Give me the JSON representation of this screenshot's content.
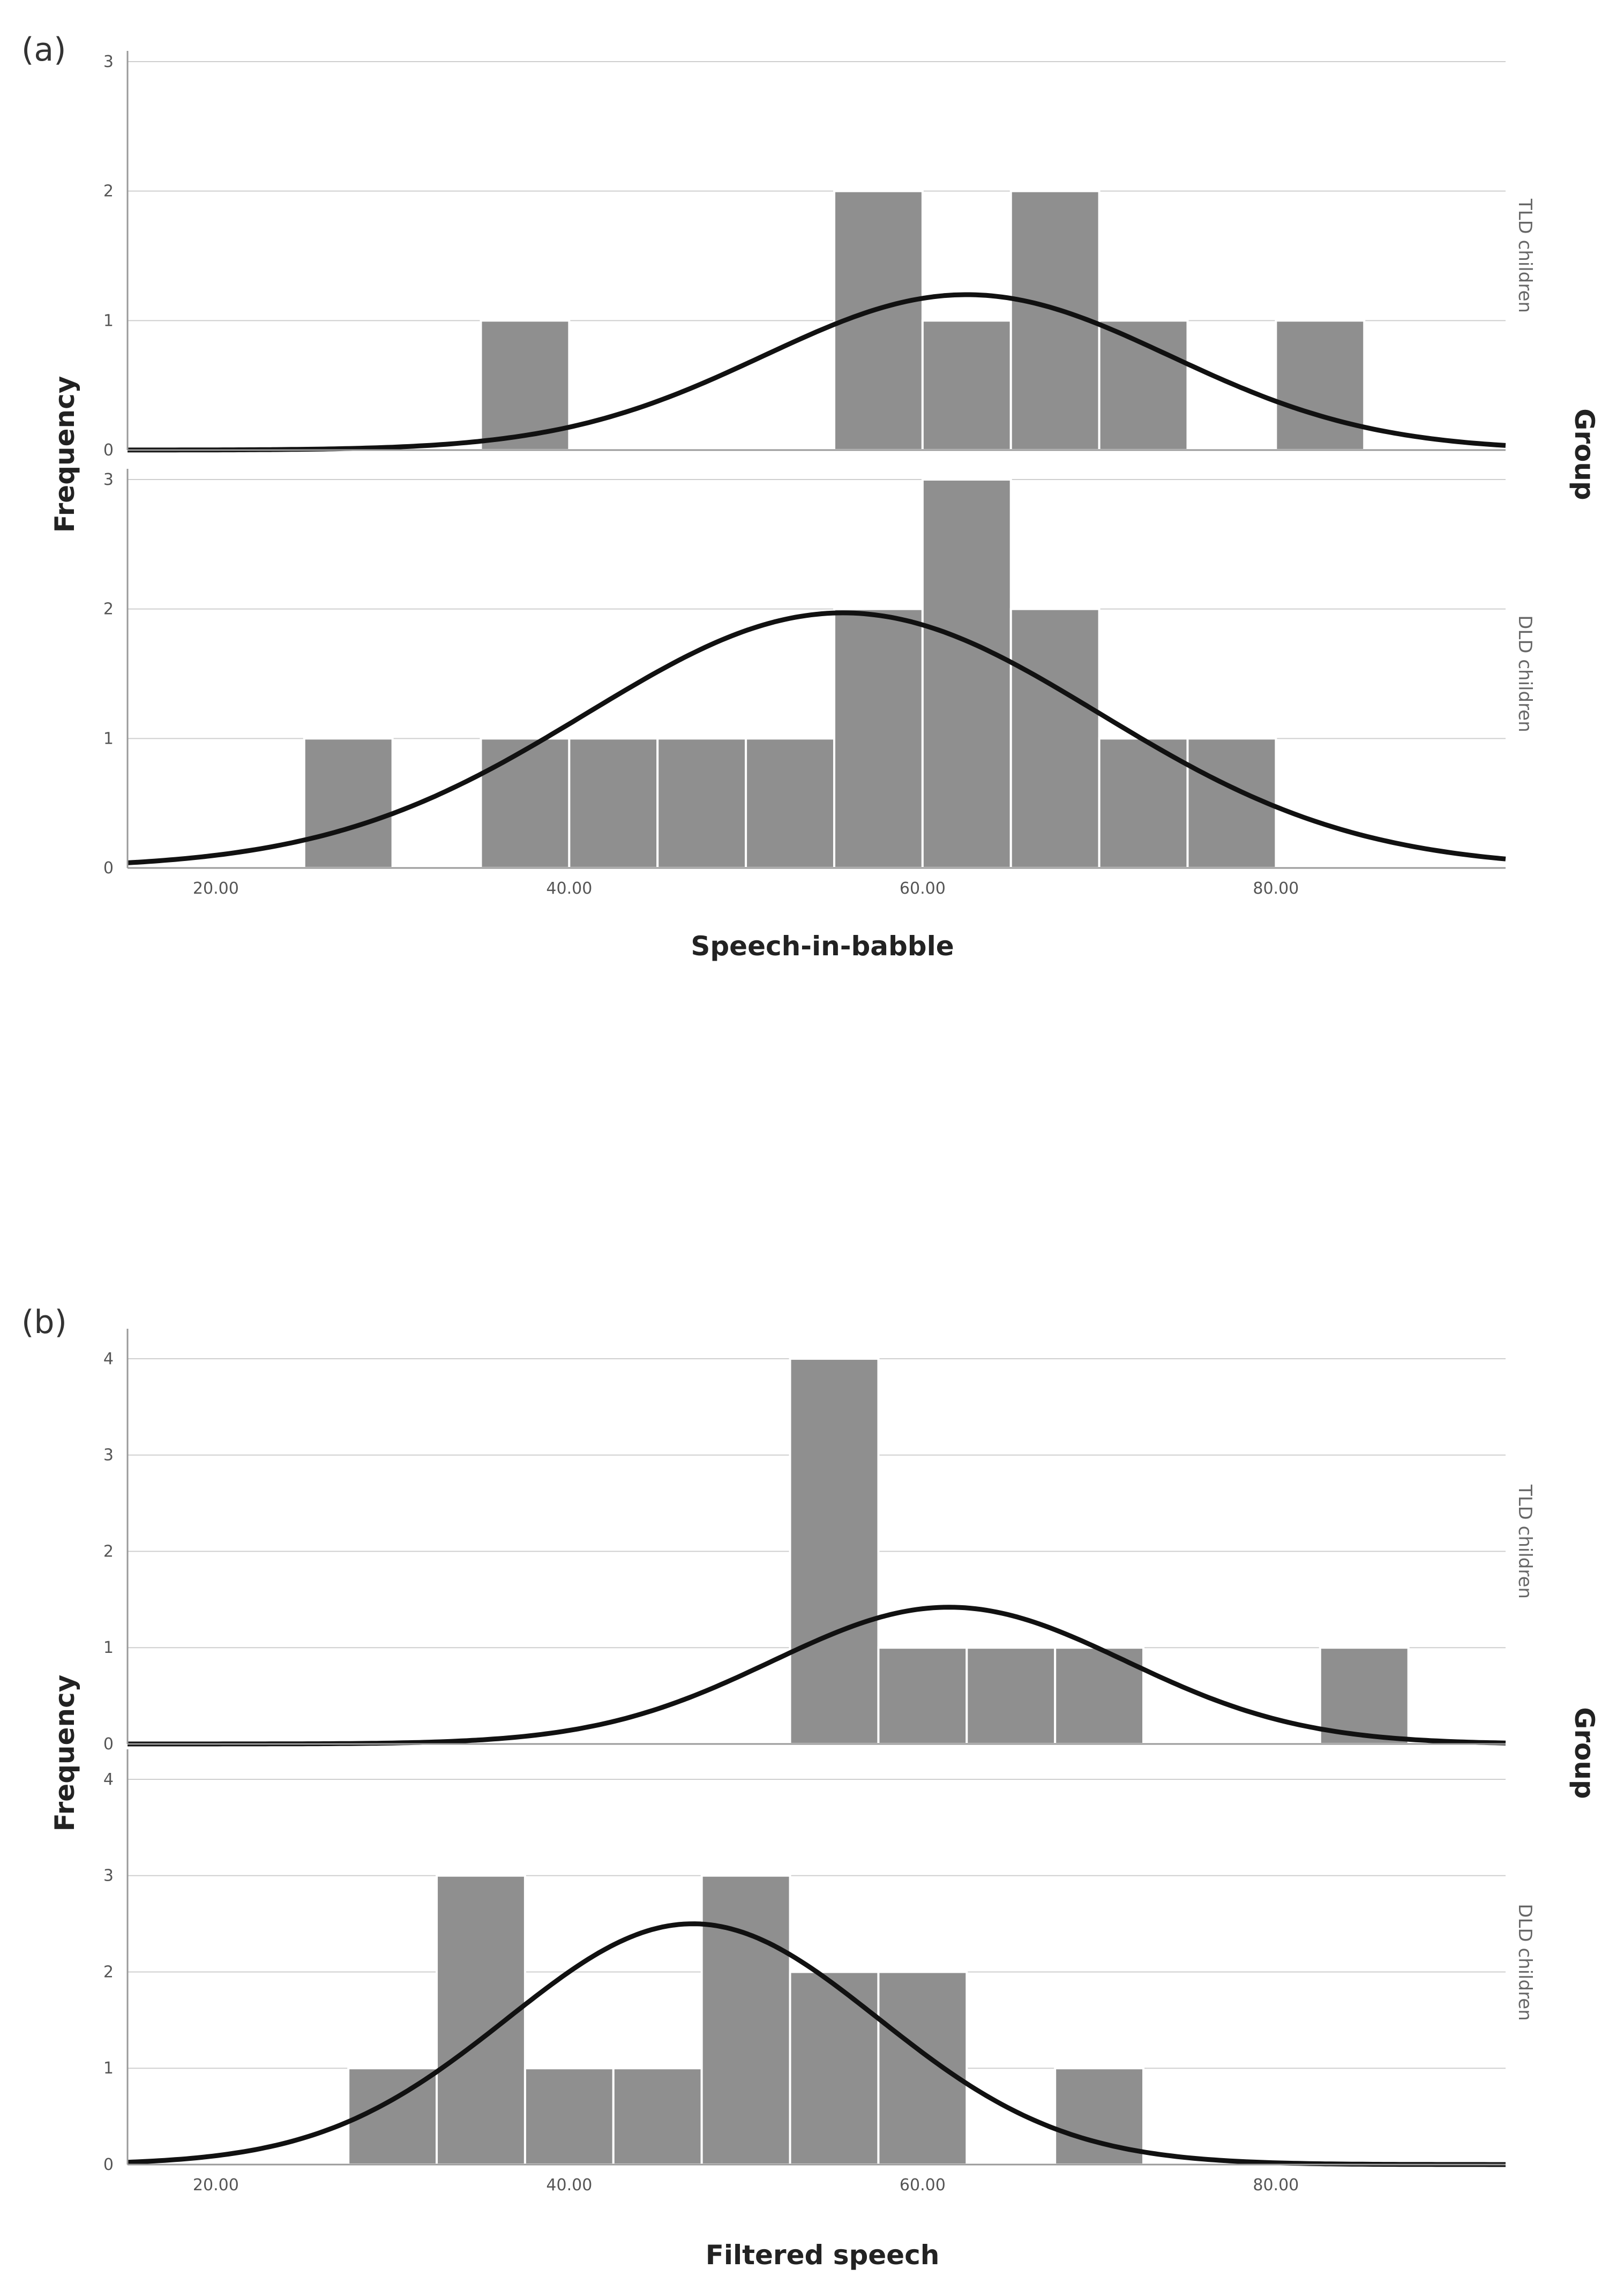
{
  "chart_data": [
    {
      "panel_label": "(a)",
      "type": "bar",
      "kind": "histogram with normal curve",
      "xlabel": "Speech-in-babble",
      "ylabel": "Frequency",
      "group_label": "Group",
      "xlim": [
        15,
        93
      ],
      "xticks": [
        20,
        40,
        60,
        80
      ],
      "xtick_labels": [
        "20.00",
        "40.00",
        "60.00",
        "80.00"
      ],
      "bin_width": 5,
      "panels": [
        {
          "name": "TLD children",
          "ylim": [
            0,
            3
          ],
          "yticks": [
            0,
            1,
            2,
            3
          ],
          "ytick_labels": [
            "0",
            "1",
            "2",
            "3"
          ],
          "bins": [
            {
              "start": 35,
              "end": 40,
              "count": 1
            },
            {
              "start": 55,
              "end": 60,
              "count": 2
            },
            {
              "start": 60,
              "end": 65,
              "count": 1
            },
            {
              "start": 65,
              "end": 70,
              "count": 2
            },
            {
              "start": 70,
              "end": 75,
              "count": 1
            },
            {
              "start": 80,
              "end": 85,
              "count": 1
            }
          ],
          "curve": {
            "mean": 62.5,
            "sd": 11.5,
            "peak": 1.2
          }
        },
        {
          "name": "DLD children",
          "ylim": [
            0,
            3
          ],
          "yticks": [
            0,
            1,
            2,
            3
          ],
          "ytick_labels": [
            "0",
            "1",
            "2",
            "3"
          ],
          "bins": [
            {
              "start": 25,
              "end": 30,
              "count": 1
            },
            {
              "start": 35,
              "end": 40,
              "count": 1
            },
            {
              "start": 40,
              "end": 45,
              "count": 1
            },
            {
              "start": 45,
              "end": 50,
              "count": 1
            },
            {
              "start": 50,
              "end": 55,
              "count": 1
            },
            {
              "start": 55,
              "end": 60,
              "count": 2
            },
            {
              "start": 60,
              "end": 65,
              "count": 3
            },
            {
              "start": 65,
              "end": 70,
              "count": 2
            },
            {
              "start": 70,
              "end": 75,
              "count": 1
            },
            {
              "start": 75,
              "end": 80,
              "count": 1
            }
          ],
          "curve": {
            "mean": 55.5,
            "sd": 14.5,
            "peak": 1.97
          }
        }
      ]
    },
    {
      "panel_label": "(b)",
      "type": "bar",
      "kind": "histogram with normal curve",
      "xlabel": "Filtered speech",
      "ylabel": "Frequency",
      "group_label": "Group",
      "xlim": [
        15,
        93
      ],
      "xticks": [
        20,
        40,
        60,
        80
      ],
      "xtick_labels": [
        "20.00",
        "40.00",
        "60.00",
        "80.00"
      ],
      "bin_width": 5,
      "panels": [
        {
          "name": "TLD children",
          "ylim": [
            0,
            4.2
          ],
          "yticks": [
            0,
            1,
            2,
            3,
            4
          ],
          "ytick_labels": [
            "0",
            "1",
            "2",
            "3",
            "4"
          ],
          "bins": [
            {
              "start": 52.5,
              "end": 57.5,
              "count": 4
            },
            {
              "start": 57.5,
              "end": 62.5,
              "count": 1
            },
            {
              "start": 62.5,
              "end": 67.5,
              "count": 1
            },
            {
              "start": 67.5,
              "end": 72.5,
              "count": 1
            },
            {
              "start": 82.5,
              "end": 87.5,
              "count": 1
            }
          ],
          "curve": {
            "mean": 61.5,
            "sd": 10.0,
            "peak": 1.42
          }
        },
        {
          "name": "DLD children",
          "ylim": [
            0,
            4.2
          ],
          "yticks": [
            0,
            1,
            2,
            3,
            4
          ],
          "ytick_labels": [
            "0",
            "1",
            "2",
            "3",
            "4"
          ],
          "bins": [
            {
              "start": 27.5,
              "end": 32.5,
              "count": 1
            },
            {
              "start": 32.5,
              "end": 37.5,
              "count": 3
            },
            {
              "start": 37.5,
              "end": 42.5,
              "count": 1
            },
            {
              "start": 42.5,
              "end": 47.5,
              "count": 1
            },
            {
              "start": 47.5,
              "end": 52.5,
              "count": 3
            },
            {
              "start": 52.5,
              "end": 57.5,
              "count": 2
            },
            {
              "start": 57.5,
              "end": 62.5,
              "count": 2
            },
            {
              "start": 67.5,
              "end": 72.5,
              "count": 1
            }
          ],
          "curve": {
            "mean": 47.0,
            "sd": 10.5,
            "peak": 2.5
          }
        }
      ]
    }
  ]
}
